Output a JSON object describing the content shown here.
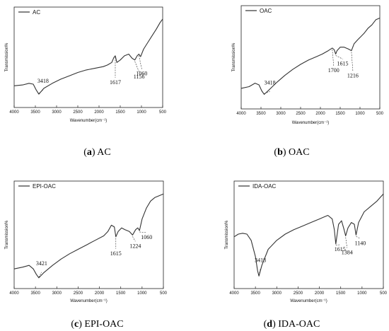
{
  "chart_data": [
    {
      "type": "line",
      "legend": "AC",
      "caption_letter": "a",
      "caption_text": "AC",
      "xlabel": "Wavenumber(cm⁻¹)",
      "ylabel": "Transmission%",
      "xlim": [
        4000,
        500
      ],
      "xticks": [
        4000,
        3500,
        3000,
        2500,
        2000,
        1500,
        1000,
        500
      ],
      "x": [
        4000,
        3800,
        3650,
        3550,
        3480,
        3418,
        3300,
        3100,
        2900,
        2700,
        2500,
        2300,
        2100,
        1900,
        1800,
        1700,
        1650,
        1617,
        1580,
        1500,
        1400,
        1300,
        1220,
        1156,
        1100,
        1060,
        1020,
        950,
        850,
        750,
        650,
        560,
        500
      ],
      "y": [
        0.2,
        0.21,
        0.23,
        0.22,
        0.15,
        0.1,
        0.17,
        0.23,
        0.28,
        0.32,
        0.36,
        0.39,
        0.41,
        0.43,
        0.45,
        0.48,
        0.54,
        0.56,
        0.48,
        0.51,
        0.56,
        0.58,
        0.53,
        0.51,
        0.56,
        0.58,
        0.55,
        0.64,
        0.72,
        0.8,
        0.88,
        0.96,
        1.0
      ],
      "annotations": [
        {
          "label": "3418",
          "x": 3418
        },
        {
          "label": "1617",
          "x": 1617
        },
        {
          "label": "1156",
          "x": 1156
        },
        {
          "label": "1060",
          "x": 1060
        }
      ]
    },
    {
      "type": "line",
      "legend": "OAC",
      "caption_letter": "b",
      "caption_text": "OAC",
      "xlabel": "Wavenumber(cm⁻¹)",
      "ylabel": "Transmission%",
      "xlim": [
        4000,
        500
      ],
      "xticks": [
        4000,
        3500,
        3000,
        2500,
        2000,
        1500,
        1000,
        500
      ],
      "x": [
        4000,
        3800,
        3650,
        3550,
        3480,
        3418,
        3300,
        3100,
        2900,
        2700,
        2500,
        2300,
        2100,
        1950,
        1800,
        1700,
        1650,
        1615,
        1580,
        1500,
        1400,
        1300,
        1216,
        1150,
        1050,
        900,
        800,
        700,
        600,
        500
      ],
      "y": [
        0.18,
        0.2,
        0.24,
        0.22,
        0.15,
        0.11,
        0.16,
        0.25,
        0.33,
        0.4,
        0.46,
        0.51,
        0.55,
        0.58,
        0.62,
        0.65,
        0.63,
        0.58,
        0.62,
        0.66,
        0.66,
        0.64,
        0.62,
        0.7,
        0.75,
        0.82,
        0.88,
        0.92,
        0.98,
        1.0
      ],
      "annotations": [
        {
          "label": "3418",
          "x": 3418
        },
        {
          "label": "1700",
          "x": 1700
        },
        {
          "label": "1615",
          "x": 1615
        },
        {
          "label": "1216",
          "x": 1216
        }
      ]
    },
    {
      "type": "line",
      "legend": "EPI-OAC",
      "caption_letter": "c",
      "caption_text": "EPI-OAC",
      "xlabel": "Wavenumber(cm⁻¹)",
      "ylabel": "Transmission%",
      "xlim": [
        4000,
        500
      ],
      "xticks": [
        4000,
        3500,
        3000,
        2500,
        2000,
        1500,
        1000,
        500
      ],
      "x": [
        4000,
        3800,
        3650,
        3550,
        3480,
        3421,
        3300,
        3100,
        2900,
        2700,
        2500,
        2300,
        2100,
        1900,
        1800,
        1720,
        1650,
        1615,
        1560,
        1480,
        1400,
        1300,
        1224,
        1150,
        1100,
        1060,
        1000,
        900,
        800,
        700,
        600,
        500
      ],
      "y": [
        0.16,
        0.18,
        0.2,
        0.16,
        0.1,
        0.06,
        0.12,
        0.2,
        0.27,
        0.33,
        0.38,
        0.43,
        0.48,
        0.53,
        0.58,
        0.65,
        0.63,
        0.52,
        0.58,
        0.62,
        0.6,
        0.58,
        0.54,
        0.6,
        0.62,
        0.59,
        0.72,
        0.84,
        0.92,
        0.96,
        0.98,
        1.0
      ],
      "annotations": [
        {
          "label": "3421",
          "x": 3421
        },
        {
          "label": "1615",
          "x": 1615
        },
        {
          "label": "1224",
          "x": 1224
        },
        {
          "label": "1060",
          "x": 1060
        }
      ]
    },
    {
      "type": "line",
      "legend": "IDA-OAC",
      "caption_letter": "d",
      "caption_text": "IDA-OAC",
      "xlabel": "Wavenumber(cm⁻¹)",
      "ylabel": "Transmission%",
      "xlim": [
        4000,
        500
      ],
      "xticks": [
        4000,
        3500,
        3000,
        2500,
        2000,
        1500,
        1000,
        500
      ],
      "x": [
        4000,
        3900,
        3800,
        3700,
        3600,
        3500,
        3450,
        3418,
        3350,
        3200,
        3000,
        2800,
        2600,
        2400,
        2200,
        2000,
        1900,
        1800,
        1700,
        1650,
        1615,
        1550,
        1480,
        1420,
        1384,
        1330,
        1250,
        1180,
        1140,
        1080,
        950,
        800,
        650,
        500
      ],
      "y": [
        0.52,
        0.55,
        0.56,
        0.55,
        0.48,
        0.3,
        0.14,
        0.08,
        0.2,
        0.38,
        0.48,
        0.55,
        0.6,
        0.64,
        0.68,
        0.72,
        0.74,
        0.76,
        0.72,
        0.6,
        0.44,
        0.66,
        0.7,
        0.6,
        0.53,
        0.62,
        0.68,
        0.66,
        0.54,
        0.68,
        0.8,
        0.86,
        0.92,
        1.0
      ],
      "annotations": [
        {
          "label": "3418",
          "x": 3418
        },
        {
          "label": "1615",
          "x": 1615
        },
        {
          "label": "1384",
          "x": 1384
        },
        {
          "label": "1140",
          "x": 1140
        }
      ]
    }
  ]
}
